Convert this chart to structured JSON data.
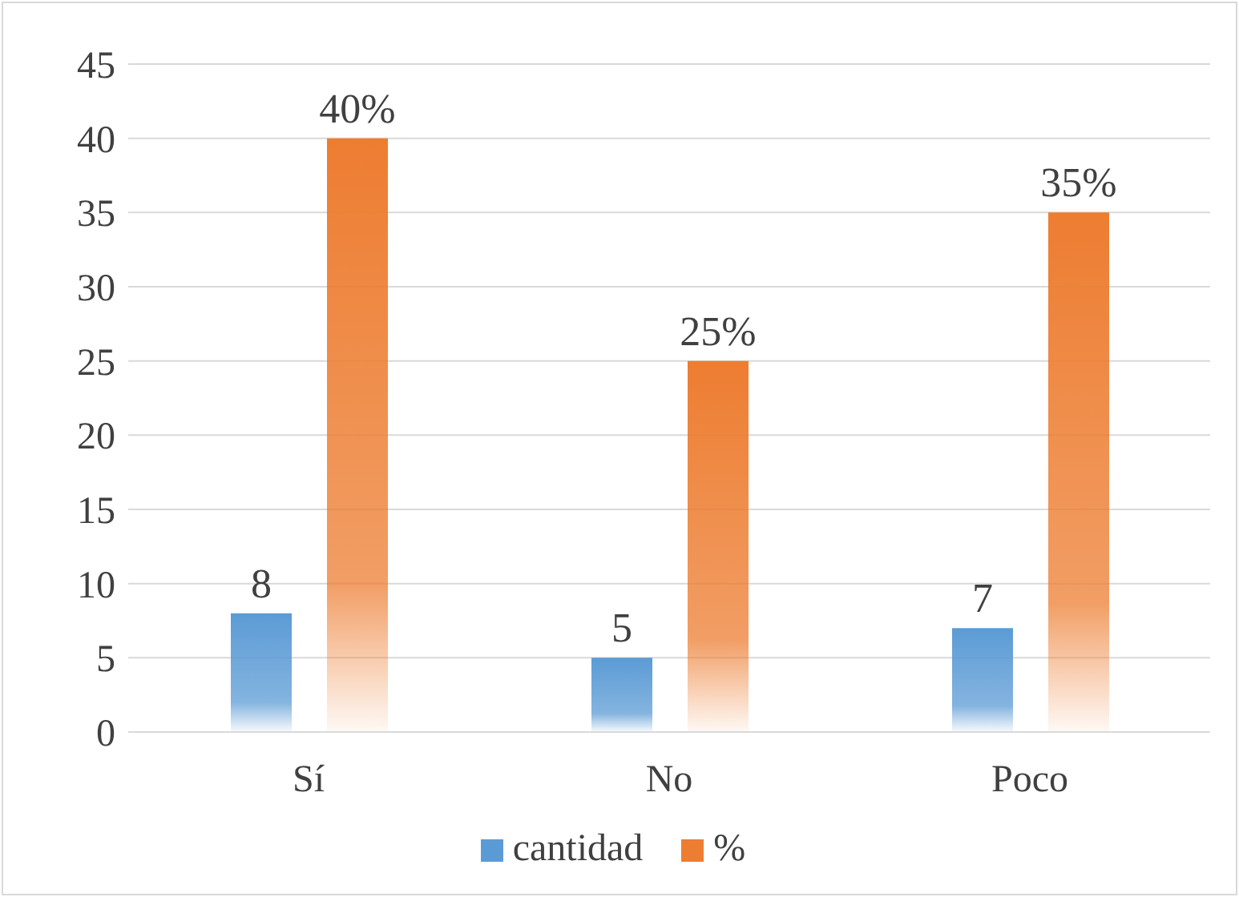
{
  "chart_data": {
    "type": "bar",
    "categories": [
      "Sí",
      "No",
      "Poco"
    ],
    "series": [
      {
        "name": "cantidad",
        "color": "#5b9bd5",
        "values": [
          8,
          5,
          7
        ],
        "value_labels": [
          "8",
          "5",
          "7"
        ]
      },
      {
        "name": "%",
        "color": "#ed7d31",
        "values": [
          40,
          25,
          35
        ],
        "value_labels": [
          "40%",
          "25%",
          "35%"
        ]
      }
    ],
    "ylim": [
      0,
      45
    ],
    "yticks": [
      0,
      5,
      10,
      15,
      20,
      25,
      30,
      35,
      40,
      45
    ],
    "grid": "y",
    "legend": "bottom"
  }
}
